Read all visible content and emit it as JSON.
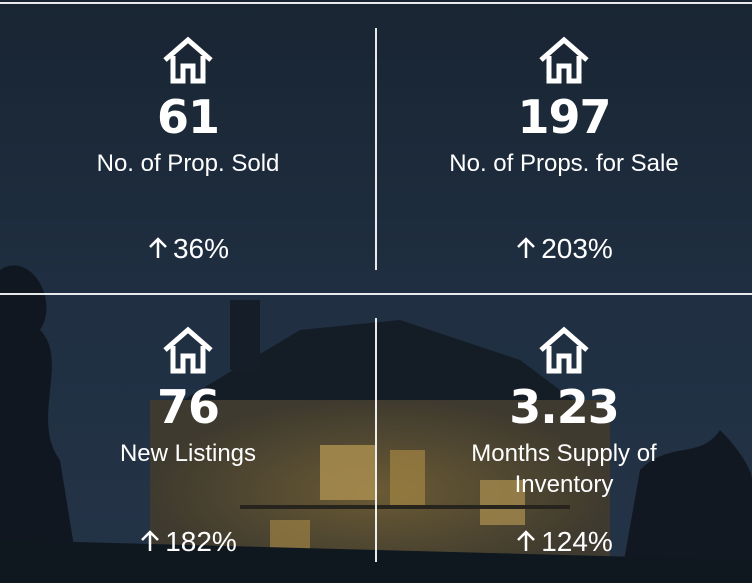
{
  "tiles": [
    {
      "icon": "house-icon",
      "value": "61",
      "label": "No. of Prop. Sold",
      "change_icon": "arrow-up-icon",
      "change": "36%"
    },
    {
      "icon": "house-icon",
      "value": "197",
      "label": "No. of Props. for Sale",
      "change_icon": "arrow-up-icon",
      "change": "203%"
    },
    {
      "icon": "house-icon",
      "value": "76",
      "label": "New Listings",
      "change_icon": "arrow-up-icon",
      "change": "182%"
    },
    {
      "icon": "house-icon",
      "value": "3.23",
      "label": "Months Supply of Inventory",
      "change_icon": "arrow-up-icon",
      "change": "124%"
    }
  ],
  "colors": {
    "text": "#ffffff",
    "divider": "#ffffff",
    "background": "#1d2a3a"
  }
}
